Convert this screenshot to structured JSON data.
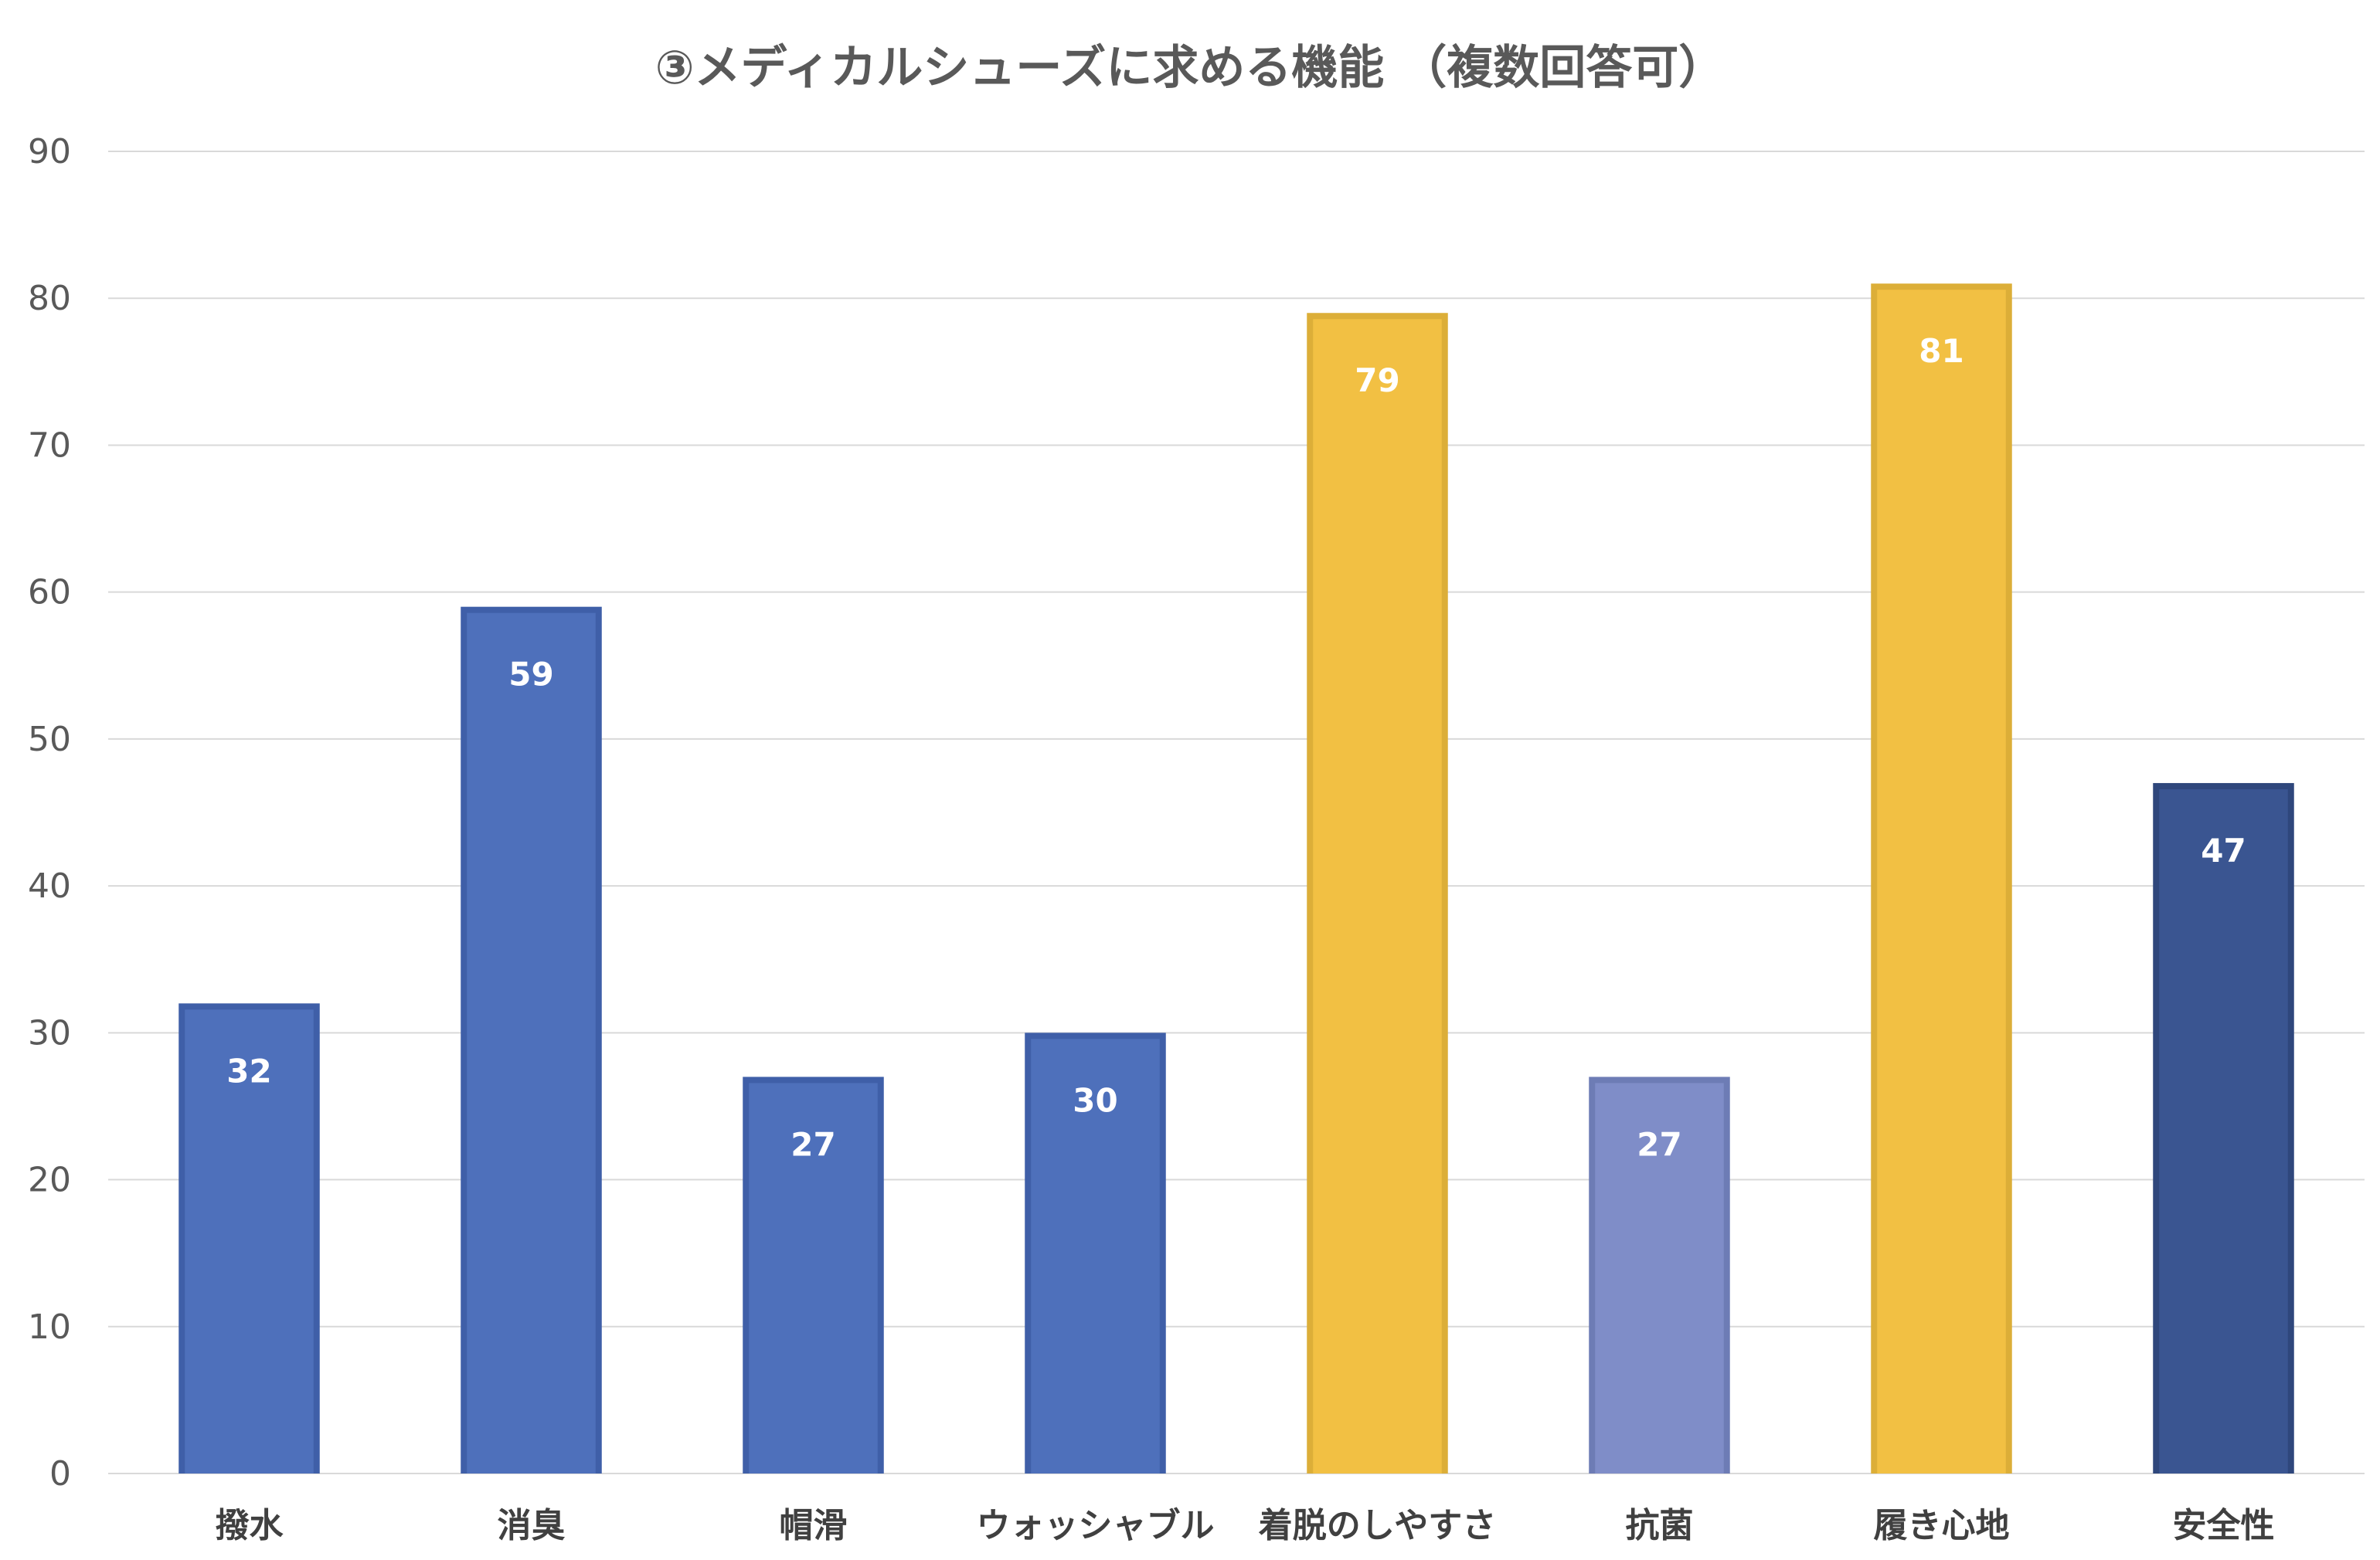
{
  "chart_data": {
    "type": "bar",
    "title": "③メディカルシューズに求める機能 （複数回答可）",
    "xlabel": "",
    "ylabel": "",
    "ylim": [
      0,
      90
    ],
    "ytick_step": 10,
    "grid": true,
    "legend": "none",
    "categories": [
      "撥水",
      "消臭",
      "帽滑",
      "ウォッシャブル",
      "着脱のしやすさ",
      "抗菌",
      "履き心地",
      "安全性"
    ],
    "values": [
      32,
      59,
      27,
      30,
      79,
      27,
      81,
      47
    ],
    "data_labels": [
      "32",
      "59",
      "27",
      "30",
      "79",
      "27",
      "81",
      "47"
    ],
    "bar_colors": [
      "#4e70bb",
      "#4e70bb",
      "#4e70bb",
      "#4e70bb",
      "#f2c043",
      "#7f8dc8",
      "#f2c043",
      "#3a5591"
    ],
    "bar_border_colors": [
      "#3f5fa8",
      "#3f5fa8",
      "#3f5fa8",
      "#3f5fa8",
      "#dcae38",
      "#6d7cb5",
      "#dcae38",
      "#2f477c"
    ]
  }
}
